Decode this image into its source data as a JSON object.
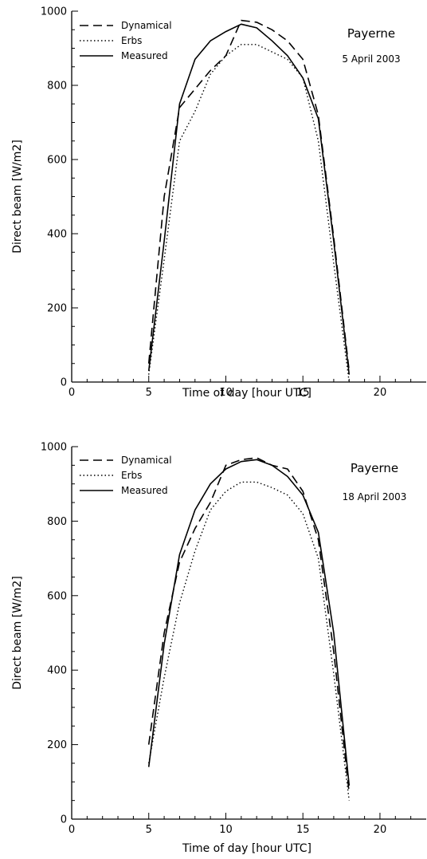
{
  "chart_data": [
    {
      "type": "line",
      "xlabel": "Time of day [hour UTC]",
      "ylabel": "Direct beam [W/m2]",
      "xlim": [
        0,
        23
      ],
      "ylim": [
        0,
        1000
      ],
      "xticks": [
        0,
        5,
        10,
        15,
        20
      ],
      "yticks": [
        0,
        200,
        400,
        600,
        800,
        1000
      ],
      "grid": false,
      "legend_position": "top-left",
      "annotations": [
        "Payerne",
        "5 April 2003"
      ],
      "series": [
        {
          "name": "Dynamical",
          "style": "dashed",
          "x": [
            5,
            6,
            7,
            8,
            9,
            10,
            11,
            12,
            13,
            14,
            15,
            16,
            17,
            18
          ],
          "y": [
            50,
            500,
            740,
            790,
            840,
            880,
            975,
            970,
            950,
            920,
            870,
            720,
            390,
            30
          ]
        },
        {
          "name": "Erbs",
          "style": "dotted",
          "x": [
            5,
            6,
            7,
            8,
            9,
            10,
            11,
            12,
            13,
            14,
            15,
            16,
            17,
            18
          ],
          "y": [
            20,
            330,
            650,
            730,
            830,
            880,
            910,
            910,
            890,
            870,
            820,
            650,
            320,
            0
          ]
        },
        {
          "name": "Measured",
          "style": "solid",
          "x": [
            5,
            6,
            7,
            8,
            9,
            10,
            11,
            12,
            13,
            14,
            15,
            16,
            17,
            18
          ],
          "y": [
            30,
            380,
            750,
            870,
            920,
            945,
            965,
            955,
            920,
            880,
            820,
            710,
            380,
            20
          ]
        }
      ]
    },
    {
      "type": "line",
      "xlabel": "Time of day [hour UTC]",
      "ylabel": "Direct beam [W/m2]",
      "xlim": [
        0,
        23
      ],
      "ylim": [
        0,
        1000
      ],
      "xticks": [
        0,
        5,
        10,
        15,
        20
      ],
      "yticks": [
        0,
        200,
        400,
        600,
        800,
        1000
      ],
      "grid": false,
      "legend_position": "top-left",
      "annotations": [
        "Payerne",
        "18 April 2003"
      ],
      "series": [
        {
          "name": "Dynamical",
          "style": "dashed",
          "x": [
            5,
            6,
            7,
            8,
            9,
            10,
            11,
            12,
            13,
            14,
            15,
            16,
            17,
            18
          ],
          "y": [
            200,
            500,
            690,
            780,
            850,
            950,
            965,
            970,
            950,
            940,
            880,
            750,
            450,
            70
          ]
        },
        {
          "name": "Erbs",
          "style": "dotted",
          "x": [
            5,
            6,
            7,
            8,
            9,
            10,
            11,
            12,
            13,
            14,
            15,
            16,
            17,
            18
          ],
          "y": [
            150,
            380,
            580,
            720,
            830,
            880,
            905,
            905,
            890,
            870,
            820,
            700,
            390,
            50
          ]
        },
        {
          "name": "Measured",
          "style": "solid",
          "x": [
            5,
            6,
            7,
            8,
            9,
            10,
            11,
            12,
            13,
            14,
            15,
            16,
            17,
            18
          ],
          "y": [
            140,
            470,
            710,
            830,
            900,
            940,
            960,
            965,
            950,
            920,
            870,
            770,
            500,
            90
          ]
        }
      ]
    }
  ]
}
